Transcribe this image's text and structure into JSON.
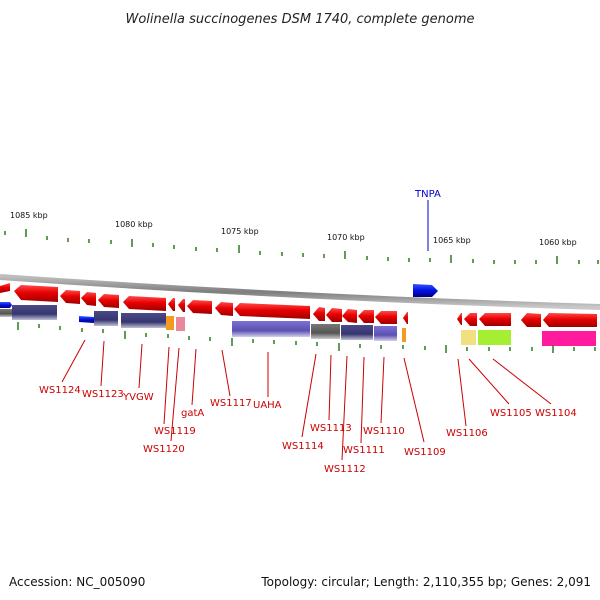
{
  "title": "Wolinella succinogenes DSM 1740, complete genome",
  "footer": {
    "accession": "Accession: NC_005090",
    "topology": "Topology: circular; Length: 2,110,355 bp; Genes: 2,091"
  },
  "ruler": [
    "1085 kbp",
    "1080 kbp",
    "1075 kbp",
    "1070 kbp",
    "1065 kbp",
    "1060 kbp"
  ],
  "colors": {
    "forward_gene": "#0000dd",
    "reverse_gene": "#e00000",
    "backbone": "#888888",
    "tick": "#2a7a1a",
    "label_red": "#cc0000",
    "label_blue": "#0000cc"
  },
  "genes_above": [
    {
      "name": "TNPA",
      "color": "blue"
    }
  ],
  "genes_below": [
    "WS1124",
    "WS1123",
    "YVGW",
    "WS1119",
    "WS1120",
    "gatA",
    "WS1117",
    "UAHA",
    "WS1114",
    "WS1113",
    "WS1112",
    "WS1111",
    "WS1110",
    "WS1109",
    "WS1106",
    "WS1105",
    "WS1104"
  ]
}
